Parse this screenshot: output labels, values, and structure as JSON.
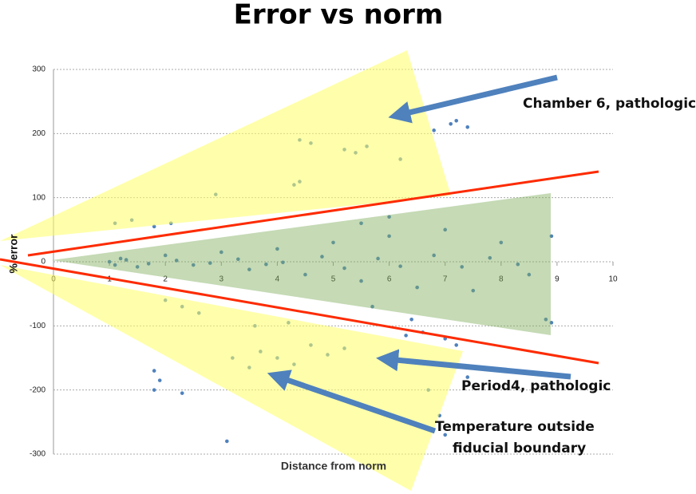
{
  "chart_data": {
    "type": "scatter",
    "title": "Error vs norm",
    "x_label": "Distance from norm",
    "y_label": "% error",
    "xlim": [
      0,
      10
    ],
    "ylim": [
      -300,
      300
    ],
    "xticks": [
      0,
      1,
      2,
      3,
      4,
      5,
      6,
      7,
      8,
      9,
      10
    ],
    "yticks": [
      -300,
      -200,
      -100,
      0,
      100,
      200,
      300
    ],
    "grid": true,
    "annotations": [
      "Chamber 6, pathologic",
      "Period4, pathologic",
      "Temperature outside",
      "fiducial boundary"
    ],
    "series": [
      {
        "color": "#4f81bd",
        "x": [
          1,
          1.2,
          1.5,
          2,
          2.5,
          3,
          3.5,
          4,
          4.5,
          5,
          5.5,
          6,
          6.5,
          7,
          7.5,
          8,
          8.5,
          8.9,
          8.9,
          8.8,
          7.2,
          7.1,
          7.4,
          6.8,
          5.2,
          5.4,
          5.6,
          4.4,
          4.6,
          4.3,
          4.4,
          6.2,
          2.9,
          1.1,
          1.4,
          1.8,
          2.1,
          2.0,
          2.3,
          2.6,
          1.8,
          1.8,
          1.9,
          2.3,
          3.1,
          3.2,
          3.5,
          3.7,
          4.0,
          4.3,
          4.6,
          4.9,
          5.2,
          3.6,
          4.2,
          6.3,
          6.6,
          7.0,
          7.2,
          7.4,
          6.7,
          6.9,
          7.0,
          1.1,
          1.3,
          1.7,
          2.2,
          2.8,
          3.3,
          3.8,
          4.1,
          4.8,
          5.2,
          5.8,
          6.2,
          6.8,
          7.3,
          7.8,
          8.3,
          5.5,
          5.7,
          6.0,
          6.4
        ],
        "values": [
          0,
          5,
          -8,
          10,
          -5,
          15,
          -12,
          20,
          -20,
          30,
          -30,
          40,
          -40,
          50,
          -45,
          30,
          -20,
          40,
          -95,
          -90,
          220,
          215,
          210,
          205,
          175,
          170,
          180,
          190,
          185,
          120,
          125,
          160,
          105,
          60,
          65,
          55,
          60,
          -60,
          -70,
          -80,
          -170,
          -200,
          -185,
          -205,
          -280,
          -150,
          -165,
          -140,
          -150,
          -160,
          -130,
          -145,
          -135,
          -100,
          -95,
          -115,
          -110,
          -120,
          -130,
          -180,
          -200,
          -240,
          -270,
          -5,
          3,
          -3,
          2,
          -2,
          4,
          -4,
          -1,
          8,
          -10,
          5,
          -7,
          10,
          -8,
          6,
          -4,
          60,
          -70,
          70,
          -90
        ]
      }
    ]
  }
}
